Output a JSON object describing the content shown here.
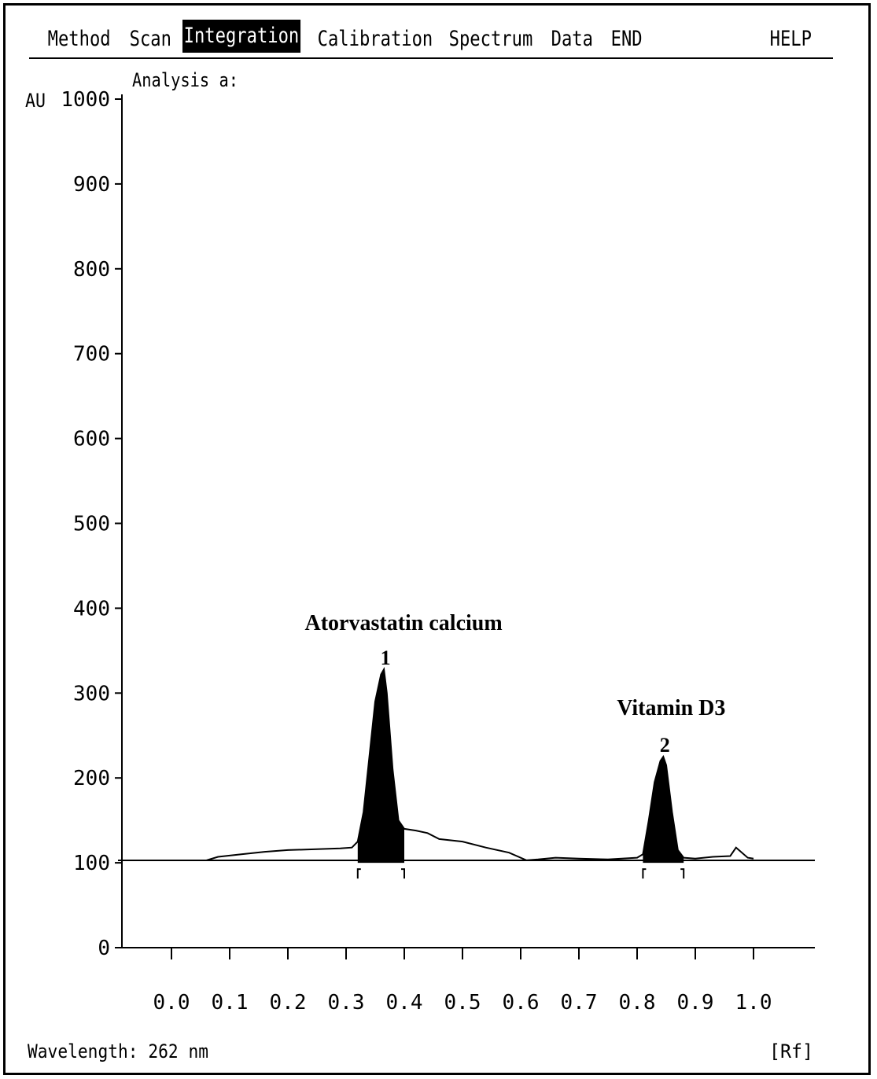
{
  "menu": {
    "items": [
      {
        "label": "Method",
        "active": false
      },
      {
        "label": "Scan",
        "active": false
      },
      {
        "label": "Integration",
        "active": true
      },
      {
        "label": "Calibration",
        "active": false
      },
      {
        "label": "Spectrum",
        "active": false
      },
      {
        "label": "Data",
        "active": false
      },
      {
        "label": "END",
        "active": false
      }
    ],
    "help_label": "HELP"
  },
  "analysis_label": "Analysis a:",
  "wavelength_label": "Wavelength: 262 nm",
  "colors": {
    "foreground": "#000000",
    "background": "#ffffff",
    "menu_active_bg": "#000000"
  },
  "chart_data": {
    "type": "line",
    "ylabel": "AU",
    "xlabel": "[Rf]",
    "xlim": [
      0.0,
      1.0
    ],
    "ylim": [
      0,
      1000
    ],
    "x_ticks": [
      "0.0",
      "0.1",
      "0.2",
      "0.3",
      "0.4",
      "0.5",
      "0.6",
      "0.7",
      "0.8",
      "0.9",
      "1.0"
    ],
    "y_ticks": [
      "1000",
      "900",
      "800",
      "700",
      "600",
      "500",
      "400",
      "300",
      "200",
      "100",
      "0"
    ],
    "baseline": 100,
    "trace": {
      "x": [
        0.06,
        0.08,
        0.12,
        0.16,
        0.2,
        0.25,
        0.29,
        0.31,
        0.32,
        0.33,
        0.34,
        0.35,
        0.36,
        0.365,
        0.37,
        0.38,
        0.39,
        0.4,
        0.42,
        0.44,
        0.46,
        0.5,
        0.54,
        0.58,
        0.61,
        0.63,
        0.66,
        0.7,
        0.75,
        0.8,
        0.81,
        0.82,
        0.83,
        0.84,
        0.845,
        0.85,
        0.86,
        0.87,
        0.88,
        0.9,
        0.93,
        0.96,
        0.97,
        0.99,
        1.0
      ],
      "y": [
        103,
        107,
        110,
        113,
        115,
        116,
        117,
        118,
        125,
        160,
        225,
        290,
        322,
        328,
        300,
        210,
        150,
        140,
        138,
        135,
        128,
        125,
        118,
        112,
        103,
        104,
        106,
        105,
        104,
        106,
        110,
        150,
        195,
        220,
        225,
        215,
        160,
        115,
        106,
        105,
        107,
        108,
        118,
        106,
        105
      ]
    },
    "peaks": [
      {
        "number": "1",
        "name": "Atorvastatin calcium",
        "rf": 0.365,
        "height": 328,
        "start": 0.32,
        "end": 0.4
      },
      {
        "number": "2",
        "name": "Vitamin D3",
        "rf": 0.845,
        "height": 225,
        "start": 0.81,
        "end": 0.88
      }
    ]
  }
}
